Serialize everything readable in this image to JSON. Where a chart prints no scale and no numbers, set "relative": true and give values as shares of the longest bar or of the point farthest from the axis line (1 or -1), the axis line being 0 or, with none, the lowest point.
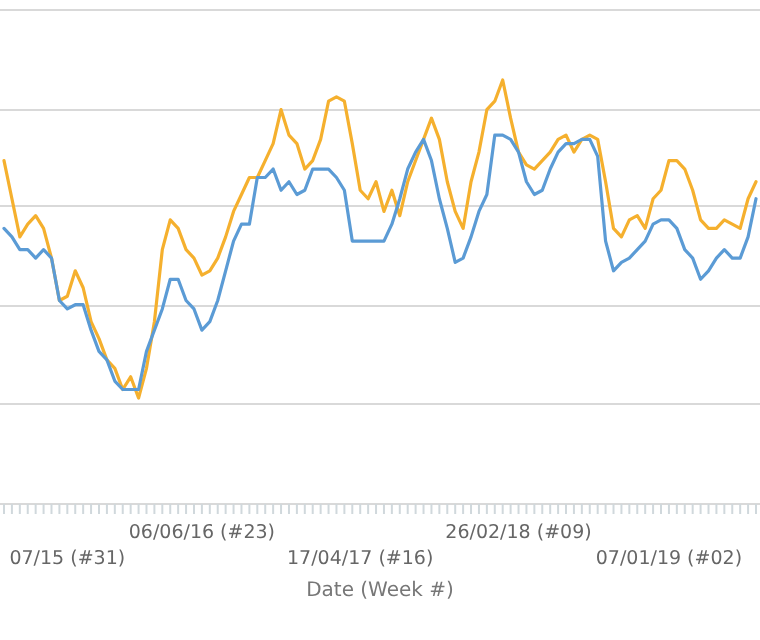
{
  "chart_data": {
    "type": "line",
    "relative": true,
    "xlabel": "Date (Week #)",
    "grid": true,
    "categories": [
      null,
      null,
      null,
      null,
      null,
      null,
      null,
      null,
      "07/15 (#31)",
      null,
      null,
      null,
      null,
      null,
      null,
      null,
      null,
      null,
      null,
      null,
      null,
      null,
      null,
      null,
      null,
      "06/06/16 (#23)",
      null,
      null,
      null,
      null,
      null,
      null,
      null,
      null,
      null,
      null,
      null,
      null,
      null,
      null,
      null,
      null,
      null,
      null,
      null,
      "17/04/17 (#16)",
      null,
      null,
      null,
      null,
      null,
      null,
      null,
      null,
      null,
      null,
      null,
      null,
      null,
      null,
      null,
      null,
      null,
      null,
      null,
      "26/02/18 (#09)",
      null,
      null,
      null,
      null,
      null,
      null,
      null,
      null,
      null,
      null,
      null,
      null,
      null,
      null,
      null,
      null,
      null,
      null,
      "07/01/19 (#02)",
      null,
      null,
      null,
      null,
      null,
      null,
      null,
      null,
      null,
      null,
      null
    ],
    "series": [
      {
        "color": "#f5b02e",
        "values": [
          0.81,
          0.72,
          0.63,
          0.66,
          0.68,
          0.65,
          0.58,
          0.48,
          0.49,
          0.55,
          0.51,
          0.43,
          0.39,
          0.34,
          0.32,
          0.27,
          0.3,
          0.25,
          0.32,
          0.43,
          0.6,
          0.67,
          0.65,
          0.6,
          0.58,
          0.54,
          0.55,
          0.58,
          0.63,
          0.69,
          0.73,
          0.77,
          0.77,
          0.81,
          0.85,
          0.93,
          0.87,
          0.85,
          0.79,
          0.81,
          0.86,
          0.95,
          0.96,
          0.95,
          0.85,
          0.74,
          0.72,
          0.76,
          0.69,
          0.74,
          0.68,
          0.76,
          0.81,
          0.86,
          0.91,
          0.86,
          0.76,
          0.69,
          0.65,
          0.76,
          0.83,
          0.93,
          0.95,
          1,
          0.91,
          0.83,
          0.8,
          0.79,
          0.81,
          0.83,
          0.86,
          0.87,
          0.83,
          0.86,
          0.87,
          0.86,
          0.76,
          0.65,
          0.63,
          0.67,
          0.68,
          0.65,
          0.72,
          0.74,
          0.81,
          0.81,
          0.79,
          0.74,
          0.67,
          0.65,
          0.65,
          0.67,
          0.66,
          0.65,
          0.72,
          0.76
        ]
      },
      {
        "color": "#5b9bd5",
        "values": [
          0.65,
          0.63,
          0.6,
          0.6,
          0.58,
          0.6,
          0.58,
          0.48,
          0.46,
          0.47,
          0.47,
          0.41,
          0.36,
          0.34,
          0.29,
          0.27,
          0.27,
          0.27,
          0.36,
          0.41,
          0.46,
          0.53,
          0.53,
          0.48,
          0.46,
          0.41,
          0.43,
          0.48,
          0.55,
          0.62,
          0.66,
          0.66,
          0.77,
          0.77,
          0.79,
          0.74,
          0.76,
          0.73,
          0.74,
          0.79,
          0.79,
          0.79,
          0.77,
          0.74,
          0.62,
          0.62,
          0.62,
          0.62,
          0.62,
          0.66,
          0.72,
          0.79,
          0.83,
          0.86,
          0.81,
          0.72,
          0.65,
          0.57,
          0.58,
          0.63,
          0.69,
          0.73,
          0.87,
          0.87,
          0.86,
          0.83,
          0.76,
          0.73,
          0.74,
          0.79,
          0.83,
          0.85,
          0.85,
          0.86,
          0.86,
          0.82,
          0.62,
          0.55,
          0.57,
          0.58,
          0.6,
          0.62,
          0.66,
          0.67,
          0.67,
          0.65,
          0.6,
          0.58,
          0.53,
          0.55,
          0.58,
          0.6,
          0.58,
          0.58,
          0.63,
          0.72
        ]
      }
    ]
  }
}
